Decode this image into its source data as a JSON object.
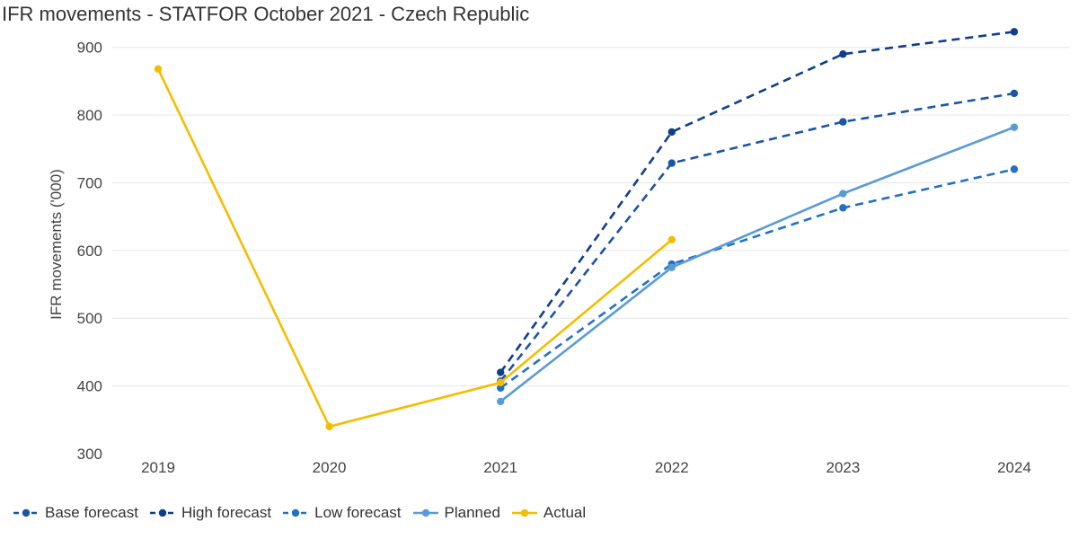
{
  "title": "IFR movements - STATFOR October 2021 - Czech Republic",
  "chart_data": {
    "type": "line",
    "title": "IFR movements - STATFOR October 2021 - Czech Republic",
    "xlabel": "",
    "ylabel": "IFR movements ('000)",
    "x": [
      "2019",
      "2020",
      "2021",
      "2022",
      "2023",
      "2024"
    ],
    "ylim": [
      300,
      950
    ],
    "yticks": [
      300,
      400,
      500,
      600,
      700,
      800,
      900
    ],
    "grid": true,
    "legend_position": "bottom-left",
    "series": [
      {
        "name": "Base forecast",
        "style": "dashed",
        "color": "#1a56a4",
        "values": [
          null,
          null,
          407,
          729,
          790,
          832
        ]
      },
      {
        "name": "High forecast",
        "style": "dashed",
        "color": "#0e3e8c",
        "values": [
          null,
          null,
          420,
          775,
          890,
          923
        ]
      },
      {
        "name": "Low forecast",
        "style": "dashed",
        "color": "#2271c3",
        "values": [
          null,
          null,
          397,
          580,
          663,
          720
        ]
      },
      {
        "name": "Planned",
        "style": "solid",
        "color": "#5b9bd5",
        "values": [
          null,
          null,
          377,
          575,
          684,
          782
        ]
      },
      {
        "name": "Actual",
        "style": "solid",
        "color": "#f5bd00",
        "values": [
          868,
          340,
          405,
          616,
          null,
          null
        ]
      }
    ]
  }
}
